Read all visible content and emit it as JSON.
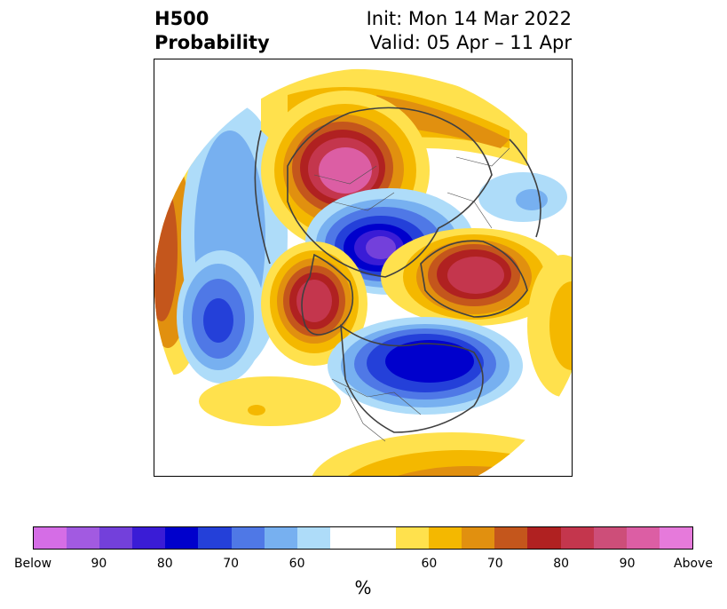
{
  "header": {
    "left_line1": "H500",
    "left_line2": "Probability",
    "right_line1": "Init: Mon 14 Mar 2022",
    "right_line2": "Valid: 05 Apr – 11 Apr"
  },
  "colorbar": {
    "colors": [
      "#d56de6",
      "#a25ae1",
      "#7340db",
      "#3a1cd6",
      "#0000cc",
      "#2440d9",
      "#4f78e6",
      "#77b0f0",
      "#aedcf9",
      "#ffffff",
      "#ffffff",
      "#ffe14d",
      "#f4b800",
      "#e1900f",
      "#c4561c",
      "#b02121",
      "#c4364d",
      "#cd4e79",
      "#dc5ea4",
      "#e67adb"
    ],
    "ticks": [
      "Below",
      "90",
      "80",
      "70",
      "60",
      "",
      "60",
      "70",
      "80",
      "90",
      "Above"
    ],
    "label": "%"
  },
  "map": {
    "type": "polar stereographic probability map",
    "anomaly_features": [
      {
        "name": "north-pacific-above",
        "category": "Above"
      },
      {
        "name": "arctic-below",
        "category": "Below"
      },
      {
        "name": "siberia-above",
        "category": "Above"
      },
      {
        "name": "northeast-pacific-below",
        "category": "Below"
      },
      {
        "name": "eurasia-above",
        "category": "Above"
      },
      {
        "name": "north-atlantic-below",
        "category": "Below"
      },
      {
        "name": "europe-above",
        "category": "Above"
      }
    ]
  }
}
